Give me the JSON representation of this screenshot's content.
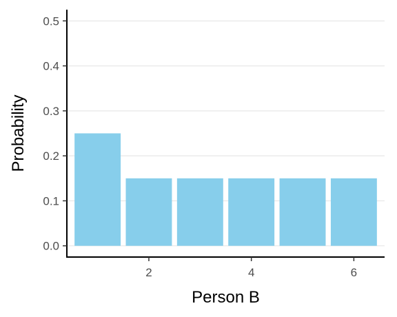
{
  "chart_data": {
    "type": "bar",
    "title": "",
    "xlabel": "Person B",
    "ylabel": "Probability",
    "x": [
      1,
      2,
      3,
      4,
      5,
      6
    ],
    "values": [
      0.25,
      0.15,
      0.15,
      0.15,
      0.15,
      0.15
    ],
    "xlim": [
      0.4,
      6.6
    ],
    "ylim": [
      -0.025,
      0.525
    ],
    "xticks": [
      2,
      4,
      6
    ],
    "xtick_labels": [
      "2",
      "4",
      "6"
    ],
    "yticks": [
      0.0,
      0.1,
      0.2,
      0.3,
      0.4,
      0.5
    ],
    "ytick_labels": [
      "0.0",
      "0.1",
      "0.2",
      "0.3",
      "0.4",
      "0.5"
    ],
    "bar_color": "#87CEEB",
    "grid": "horizontal major",
    "grid_color": "#ebebeb",
    "legend": "none"
  }
}
